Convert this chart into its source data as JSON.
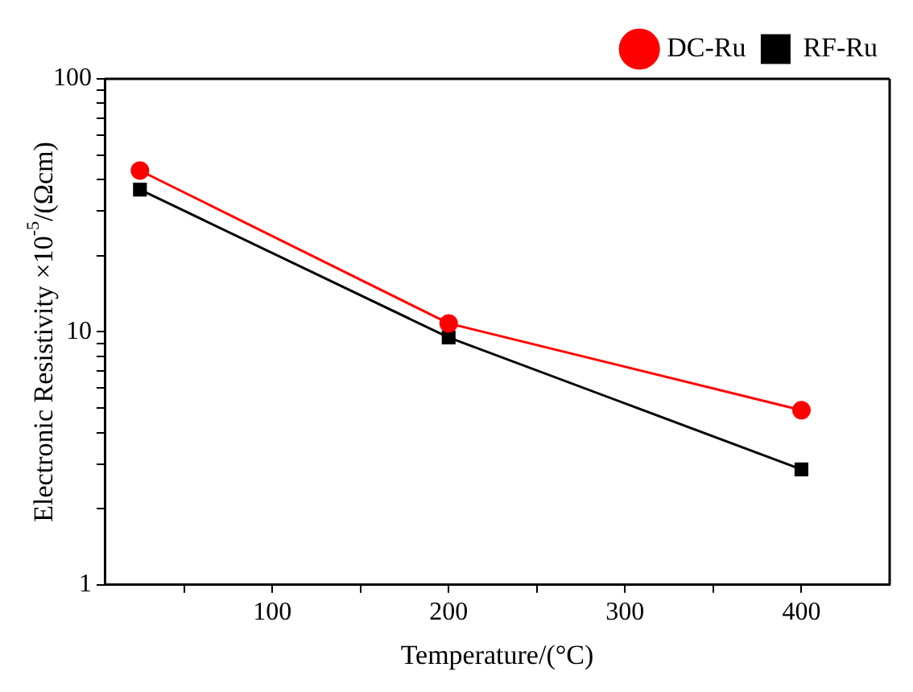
{
  "chart_data": {
    "type": "line",
    "xlabel": "Temperature/(°C)",
    "ylabel": "Electronic Resistivity ×10$^{-5}$/(Ωcm)",
    "x": [
      25,
      200,
      400
    ],
    "series": [
      {
        "name": "DC-Ru",
        "color": "#ff0000",
        "marker": "circle",
        "values": [
          43.4,
          10.8,
          4.9
        ]
      },
      {
        "name": "RF-Ru",
        "color": "#000000",
        "marker": "square",
        "values": [
          36.5,
          9.5,
          2.86
        ]
      }
    ],
    "log": "y",
    "xlim": [
      5,
      450
    ],
    "ylim": [
      1,
      100
    ],
    "xticks": [
      {
        "value": 50,
        "label": null
      },
      100,
      {
        "value": 150,
        "label": null
      },
      200,
      {
        "value": 250,
        "label": null
      },
      300,
      {
        "value": 350,
        "label": null
      },
      400
    ],
    "yticks": [
      1,
      {
        "value": 2,
        "label": null
      },
      {
        "value": 3,
        "label": null
      },
      {
        "value": 4,
        "label": null
      },
      {
        "value": 5,
        "label": null
      },
      {
        "value": 6,
        "label": null
      },
      {
        "value": 7,
        "label": null
      },
      {
        "value": 8,
        "label": null
      },
      {
        "value": 9,
        "label": null
      },
      10,
      {
        "value": 20,
        "label": null
      },
      {
        "value": 30,
        "label": null
      },
      {
        "value": 40,
        "label": null
      },
      {
        "value": 50,
        "label": null
      },
      {
        "value": 60,
        "label": null
      },
      {
        "value": 70,
        "label": null
      },
      {
        "value": 80,
        "label": null
      },
      {
        "value": 90,
        "label": null
      },
      100
    ],
    "grid": false,
    "legend": "top right",
    "line_style": "solid"
  }
}
